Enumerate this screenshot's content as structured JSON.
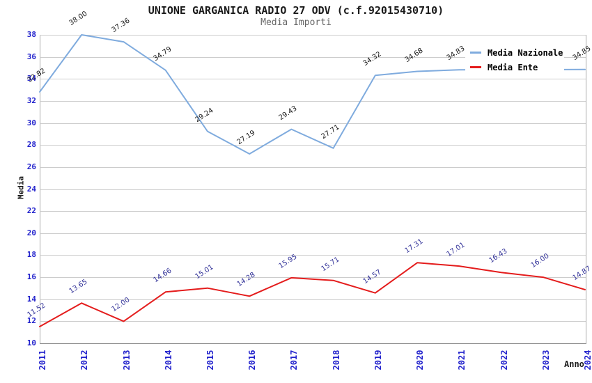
{
  "chart_data": {
    "type": "line",
    "title": "UNIONE GARGANICA RADIO 27 ODV (c.f.92015430710)",
    "subtitle": "Media Importi",
    "xlabel": "Anno",
    "ylabel": "Media",
    "categories": [
      "2011",
      "2012",
      "2013",
      "2014",
      "2015",
      "2016",
      "2017",
      "2018",
      "2019",
      "2020",
      "2021",
      "2022",
      "2023",
      "2024"
    ],
    "series": [
      {
        "name": "Media Nazionale",
        "color": "#7fabde",
        "label_color": "#1a1a1a",
        "values": [
          32.82,
          38.0,
          37.36,
          34.79,
          29.24,
          27.19,
          29.43,
          27.71,
          34.32,
          34.68,
          34.83,
          34.84,
          34.84,
          34.85
        ],
        "labels": [
          "32.82",
          "38.00",
          "37.36",
          "34.79",
          "29.24",
          "27.19",
          "29.43",
          "27.71",
          "34.32",
          "34.68",
          "34.83",
          null,
          null,
          "34.85"
        ]
      },
      {
        "name": "Media Ente",
        "color": "#e41c1c",
        "label_color": "#333399",
        "values": [
          11.52,
          13.65,
          12.0,
          14.66,
          15.01,
          14.28,
          15.95,
          15.71,
          14.57,
          17.31,
          17.01,
          16.43,
          16.0,
          14.87
        ],
        "labels": [
          "11.52",
          "13.65",
          "12.00",
          "14.66",
          "15.01",
          "14.28",
          "15.95",
          "15.71",
          "14.57",
          "17.31",
          "17.01",
          "16.43",
          "16.00",
          "14.87"
        ]
      }
    ],
    "ylim": [
      10,
      38
    ],
    "y_ticks": [
      38,
      36,
      34,
      32,
      30,
      28,
      26,
      24,
      22,
      20,
      18,
      16,
      14,
      12,
      10
    ],
    "grid": "horizontal-bands-alternating",
    "legend_position": "top-right",
    "tick_color": "#2222cc",
    "band_color": "#f0f0f0"
  }
}
